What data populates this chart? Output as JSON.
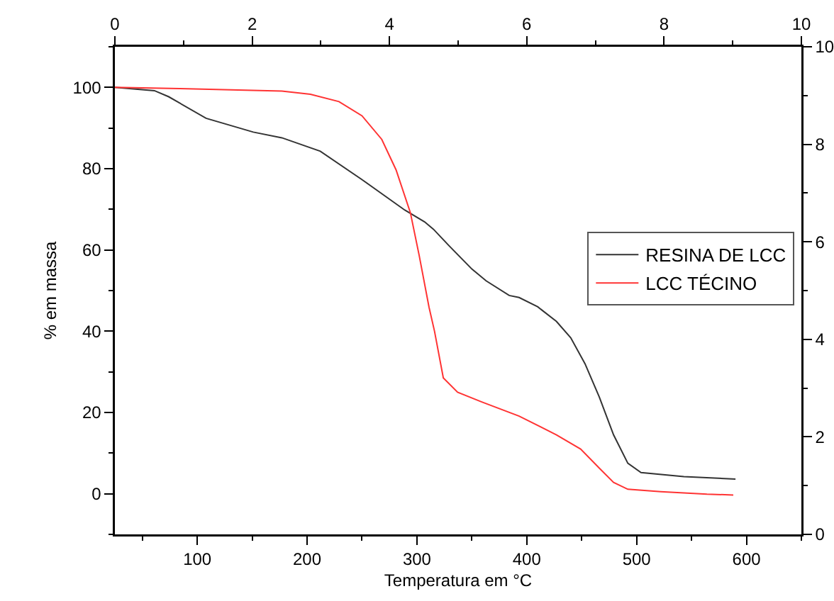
{
  "chart_data": {
    "type": "line",
    "xlabel": "Temperatura em °C",
    "ylabel": "% em massa",
    "series": [
      {
        "name": "RESINA DE LCC",
        "color": "#333333",
        "x": [
          25,
          61,
          74,
          108,
          151,
          177,
          212,
          250,
          289,
          307,
          315,
          329,
          350,
          363,
          384,
          393,
          410,
          427,
          440,
          453,
          466,
          479,
          492,
          504,
          543,
          590
        ],
        "values": [
          100,
          99.2,
          97.7,
          92.4,
          89,
          87.6,
          84.3,
          77.3,
          69.8,
          66.9,
          65.1,
          61.1,
          55.3,
          52.4,
          48.8,
          48.3,
          46,
          42.4,
          38.4,
          32,
          23.8,
          14.5,
          7.5,
          5.2,
          4.2,
          3.6
        ]
      },
      {
        "name": "LCC TÉCINO",
        "color": "#ff3333",
        "x": [
          25,
          84,
          177,
          203,
          229,
          250,
          268,
          281,
          294,
          302,
          311,
          316,
          324,
          337,
          359,
          393,
          427,
          449,
          466,
          479,
          492,
          522,
          564,
          588
        ],
        "values": [
          100,
          99.7,
          99.1,
          98.3,
          96.5,
          93,
          87.2,
          79.7,
          69.2,
          58.7,
          45.9,
          40,
          28.5,
          25,
          22.6,
          19.1,
          14.5,
          11,
          6.3,
          2.8,
          1.1,
          0.5,
          -0.1,
          -0.3
        ]
      }
    ],
    "xlim": [
      25,
      650
    ],
    "xticks": [
      {
        "value": 50,
        "label": null
      },
      100,
      {
        "value": 150,
        "label": null
      },
      200,
      {
        "value": 250,
        "label": null
      },
      300,
      {
        "value": 350,
        "label": null
      },
      400,
      {
        "value": 450,
        "label": null
      },
      500,
      {
        "value": 550,
        "label": null
      },
      600,
      {
        "value": 650,
        "label": null
      }
    ],
    "ylim": [
      -10,
      110
    ],
    "yticks": [
      {
        "value": -10,
        "label": null
      },
      0,
      {
        "value": 10,
        "label": null
      },
      20,
      {
        "value": 30,
        "label": null
      },
      40,
      {
        "value": 50,
        "label": null
      },
      60,
      {
        "value": 70,
        "label": null
      },
      80,
      {
        "value": 90,
        "label": null
      },
      100,
      {
        "value": 110,
        "label": null
      }
    ],
    "x2lim": [
      0,
      10
    ],
    "x2ticks": [
      0,
      {
        "value": 1,
        "label": null
      },
      2,
      {
        "value": 3,
        "label": null
      },
      4,
      {
        "value": 5,
        "label": null
      },
      6,
      {
        "value": 7,
        "label": null
      },
      8,
      {
        "value": 9,
        "label": null
      },
      10
    ],
    "y2lim": [
      0,
      10
    ],
    "y2ticks": [
      0,
      {
        "value": 1,
        "label": null
      },
      2,
      {
        "value": 3,
        "label": null
      },
      4,
      {
        "value": 5,
        "label": null
      },
      6,
      {
        "value": 7,
        "label": null
      },
      8,
      {
        "value": 9,
        "label": null
      },
      10
    ],
    "grid": false,
    "legend": "right",
    "marker": "none",
    "line_style": "solid"
  }
}
